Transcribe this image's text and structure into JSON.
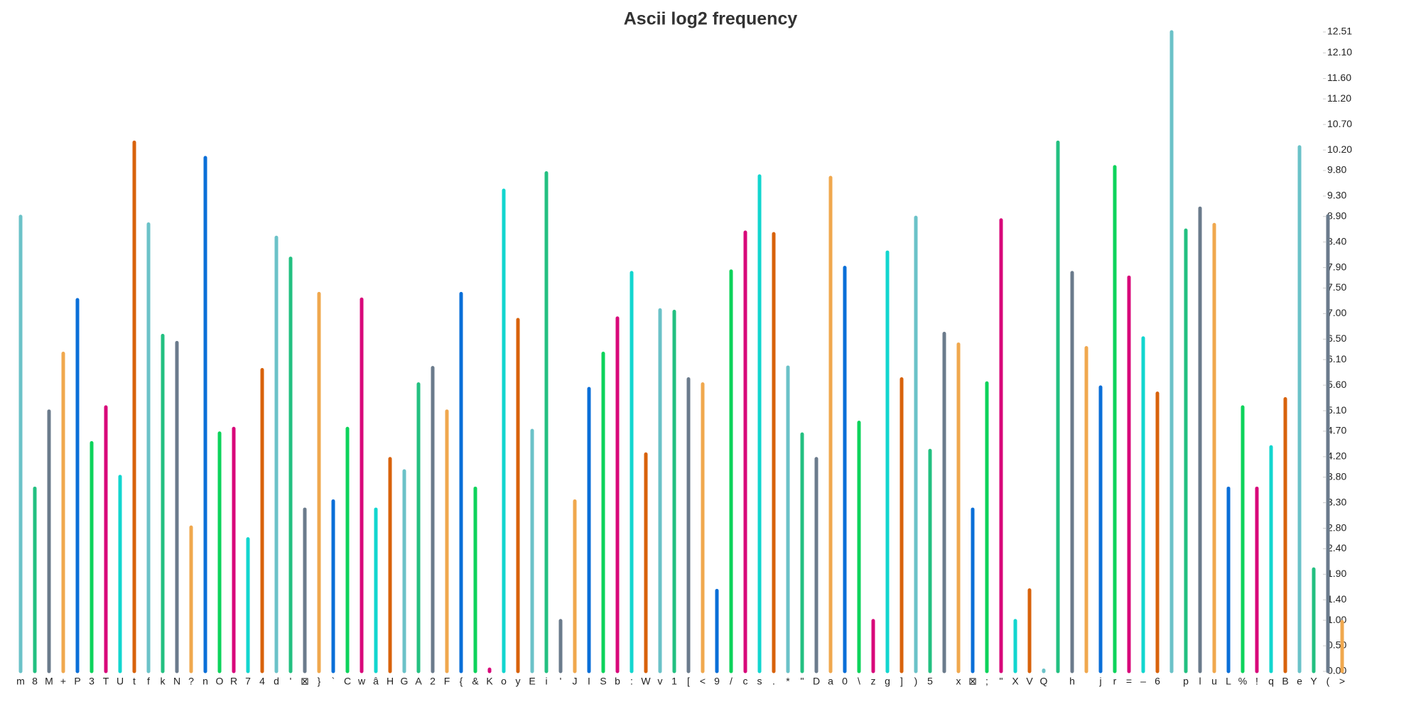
{
  "chart_data": {
    "type": "bar",
    "title": "Ascii log2 frequency",
    "categories": [
      "m",
      "8",
      "M",
      "+",
      "P",
      "3",
      "T",
      "U",
      "t",
      "f",
      "k",
      "N",
      "?",
      "n",
      "O",
      "R",
      "7",
      "4",
      "d",
      "'",
      "⊠",
      "}",
      "`",
      "C",
      "w",
      "â",
      "H",
      "G",
      "A",
      "2",
      "F",
      "{",
      "&",
      "K",
      "o",
      "y",
      "E",
      "i",
      "'",
      "J",
      "I",
      "S",
      "b",
      ":",
      "W",
      "v",
      "1",
      "[",
      "<",
      "9",
      "/",
      "c",
      "s",
      ".",
      "*",
      "\"",
      "D",
      "a",
      "0",
      "\\",
      "z",
      "g",
      "]",
      ")",
      "5",
      null,
      "x",
      "⊠",
      ";",
      "\"",
      "X",
      "V",
      "Q",
      null,
      "h",
      null,
      "j",
      "r",
      "=",
      "–",
      "6",
      null,
      "p",
      "l",
      "u",
      "L",
      "%",
      "!",
      "q",
      "B",
      "e",
      "Y",
      "(",
      ">"
    ],
    "values": [
      8.9,
      3.58,
      5.09,
      6.22,
      7.27,
      4.47,
      5.17,
      3.81,
      10.35,
      8.75,
      6.57,
      6.43,
      2.82,
      10.05,
      4.66,
      4.75,
      2.59,
      5.9,
      8.49,
      8.08,
      3.17,
      7.39,
      3.33,
      4.75,
      7.28,
      3.17,
      4.16,
      3.92,
      5.62,
      5.94,
      5.09,
      7.39,
      3.58,
      0.04,
      9.41,
      6.88,
      4.71,
      9.75,
      0.99,
      3.33,
      5.53,
      6.22,
      6.91,
      7.8,
      4.25,
      7.07,
      7.04,
      5.72,
      5.62,
      1.58,
      7.83,
      8.59,
      9.69,
      8.56,
      5.95,
      4.64,
      4.16,
      9.66,
      7.9,
      4.87,
      0.99,
      8.2,
      5.72,
      8.88,
      4.32,
      6.61,
      6.4,
      3.17,
      5.64,
      8.83,
      0.99,
      1.59,
      0.02,
      10.35,
      7.8,
      6.33,
      5.56,
      9.87,
      7.71,
      6.52,
      5.44,
      12.51,
      8.63,
      9.06,
      8.74,
      3.58,
      5.17,
      3.58,
      4.39,
      5.33,
      10.26,
      2.0,
      8.91,
      0.97
    ],
    "palette": [
      "#6bc2c8",
      "#23c081",
      "#6b7b8c",
      "#f0a84e",
      "#0a6fd8",
      "#0dd35b",
      "#d8087a",
      "#12d6cf",
      "#d8620b"
    ],
    "ylim": [
      0,
      12.51
    ],
    "yticks": [
      {
        "value": 0,
        "label": "0.00"
      },
      {
        "value": 0.5,
        "label": "0.50"
      },
      {
        "value": 1,
        "label": "1.00"
      },
      {
        "value": 1.4,
        "label": "1.40"
      },
      {
        "value": 1.9,
        "label": "1.90"
      },
      {
        "value": 2.4,
        "label": "2.40"
      },
      {
        "value": 2.8,
        "label": "2.80"
      },
      {
        "value": 3.3,
        "label": "3.30"
      },
      {
        "value": 3.8,
        "label": "3.80"
      },
      {
        "value": 4.2,
        "label": "4.20"
      },
      {
        "value": 4.7,
        "label": "4.70"
      },
      {
        "value": 5.1,
        "label": "5.10"
      },
      {
        "value": 5.6,
        "label": "5.60"
      },
      {
        "value": 6.1,
        "label": "6.10"
      },
      {
        "value": 6.5,
        "label": "6.50"
      },
      {
        "value": 7,
        "label": "7.00"
      },
      {
        "value": 7.5,
        "label": "7.50"
      },
      {
        "value": 7.9,
        "label": "7.90"
      },
      {
        "value": 8.4,
        "label": "8.40"
      },
      {
        "value": 8.9,
        "label": "8.90"
      },
      {
        "value": 9.3,
        "label": "9.30"
      },
      {
        "value": 9.8,
        "label": "9.80"
      },
      {
        "value": 10.2,
        "label": "10.20"
      },
      {
        "value": 10.7,
        "label": "10.70"
      },
      {
        "value": 11.2,
        "label": "11.20"
      },
      {
        "value": 11.6,
        "label": "11.60"
      },
      {
        "value": 12.1,
        "label": "12.10"
      },
      {
        "value": 12.51,
        "label": "12.51"
      }
    ]
  }
}
